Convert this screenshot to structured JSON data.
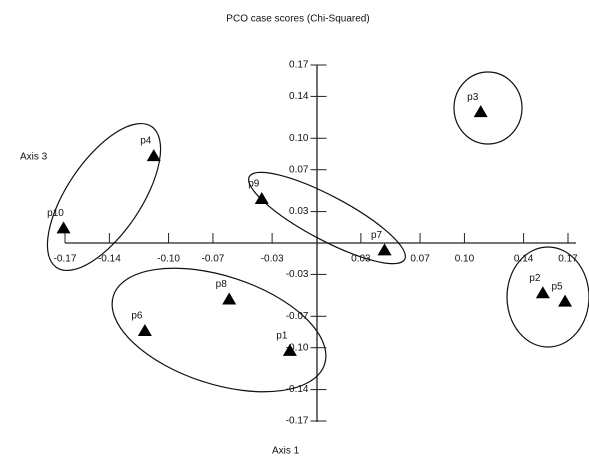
{
  "chart_data": {
    "type": "scatter",
    "title": "PCO case scores (Chi-Squared)",
    "x_label": "Axis 1",
    "y_label": "Axis 3",
    "xlim": [
      -0.17,
      0.17
    ],
    "ylim": [
      -0.17,
      0.17
    ],
    "xticks": [
      -0.17,
      -0.14,
      {
        "value": -0.1,
        "label": "-0.10"
      },
      -0.07,
      -0.03,
      0.03,
      0.07,
      {
        "value": 0.1,
        "label": "0.10"
      },
      0.14,
      0.17
    ],
    "yticks": [
      0.17,
      0.14,
      {
        "value": 0.1,
        "label": "0.10"
      },
      0.07,
      0.03,
      -0.03,
      -0.07,
      {
        "value": -0.1,
        "label": "-0.10"
      },
      -0.14,
      -0.17
    ],
    "series": [
      {
        "color": "#000000",
        "labels": [
          "p10",
          "p4",
          "p9",
          "p7",
          "p3",
          "p2",
          "p5",
          "p8",
          "p6",
          "p1"
        ],
        "x": [
          -0.171,
          -0.11,
          -0.037,
          0.046,
          0.111,
          0.153,
          0.168,
          -0.059,
          -0.116,
          -0.018
        ],
        "values": [
          0.014,
          0.083,
          0.042,
          -0.007,
          0.125,
          -0.048,
          -0.056,
          -0.054,
          -0.084,
          -0.103
        ]
      }
    ]
  }
}
